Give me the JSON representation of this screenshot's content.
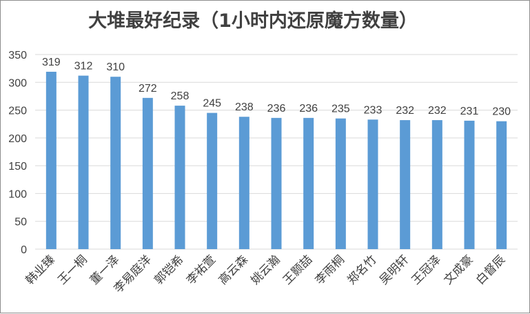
{
  "chart_data": {
    "type": "bar",
    "title": "大堆最好纪录（1小时内还原魔方数量）",
    "categories": [
      "韩业臻",
      "王一桐",
      "董一泽",
      "李易庭洋",
      "郭铠希",
      "李祐萱",
      "高云森",
      "姚云瀚",
      "王颢喆",
      "李雨桐",
      "郑名竹",
      "吴明轩",
      "王冠泽",
      "文成豪",
      "白督辰"
    ],
    "values": [
      319,
      312,
      310,
      272,
      258,
      245,
      238,
      236,
      236,
      235,
      233,
      232,
      232,
      231,
      230
    ],
    "y_ticks": [
      "0",
      "50",
      "100",
      "150",
      "200",
      "250",
      "300",
      "350"
    ],
    "ylim": [
      0,
      350
    ],
    "grid": true,
    "legend": "none",
    "bar_color": "#5b9bd5",
    "grid_color": "#d9d9d9"
  }
}
